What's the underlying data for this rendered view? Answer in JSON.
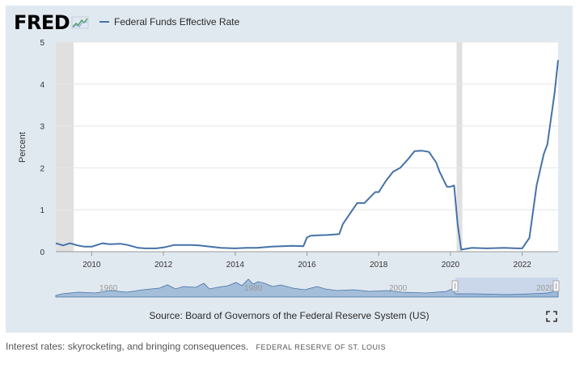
{
  "header": {
    "logo_text": "FRED",
    "legend_label": "Federal Funds Effective Rate",
    "series_color": "#4572a7"
  },
  "source": "Source: Board of Governors of the Federal Reserve System (US)",
  "caption": {
    "text": "Interest rates: skyrocketing, and bringing consequences.",
    "credit": "FEDERAL RESERVE OF ST. LOUIS"
  },
  "navigator": {
    "labels": [
      "1960",
      "1980",
      "2000",
      "2020"
    ],
    "fill_color": "#a8c0de",
    "selection_color": "#c6d4ea"
  },
  "chart_data": {
    "type": "line",
    "title": "",
    "xlabel": "",
    "ylabel": "Percent",
    "xlim": [
      2009.0,
      2023.0
    ],
    "ylim": [
      0,
      5
    ],
    "x_ticks": [
      2010,
      2012,
      2014,
      2016,
      2018,
      2020,
      2022
    ],
    "y_ticks": [
      0,
      1,
      2,
      3,
      4,
      5
    ],
    "grid": true,
    "legend_position": "top-left",
    "recessions": [
      [
        2009.0,
        2009.5
      ],
      [
        2020.17,
        2020.33
      ]
    ],
    "series": [
      {
        "name": "Federal Funds Effective Rate",
        "x": [
          2009.0,
          2009.2,
          2009.4,
          2009.6,
          2009.8,
          2010.0,
          2010.3,
          2010.5,
          2010.8,
          2011.0,
          2011.3,
          2011.5,
          2011.8,
          2012.0,
          2012.3,
          2012.5,
          2012.8,
          2013.0,
          2013.3,
          2013.6,
          2014.0,
          2014.3,
          2014.6,
          2015.0,
          2015.3,
          2015.6,
          2015.9,
          2016.0,
          2016.1,
          2016.3,
          2016.6,
          2016.9,
          2017.0,
          2017.2,
          2017.4,
          2017.6,
          2017.9,
          2018.0,
          2018.2,
          2018.4,
          2018.6,
          2018.8,
          2019.0,
          2019.2,
          2019.4,
          2019.6,
          2019.7,
          2019.9,
          2020.0,
          2020.1,
          2020.2,
          2020.3,
          2020.6,
          2021.0,
          2021.5,
          2021.9,
          2022.0,
          2022.2,
          2022.4,
          2022.6,
          2022.7,
          2022.9,
          2023.0
        ],
        "y": [
          0.2,
          0.15,
          0.2,
          0.15,
          0.12,
          0.12,
          0.2,
          0.18,
          0.19,
          0.16,
          0.09,
          0.08,
          0.08,
          0.1,
          0.16,
          0.16,
          0.16,
          0.15,
          0.12,
          0.09,
          0.08,
          0.09,
          0.09,
          0.12,
          0.13,
          0.14,
          0.13,
          0.34,
          0.38,
          0.39,
          0.4,
          0.42,
          0.66,
          0.91,
          1.16,
          1.16,
          1.42,
          1.42,
          1.69,
          1.91,
          2.0,
          2.19,
          2.4,
          2.41,
          2.38,
          2.13,
          1.9,
          1.55,
          1.55,
          1.58,
          0.65,
          0.05,
          0.09,
          0.08,
          0.09,
          0.08,
          0.08,
          0.33,
          1.58,
          2.33,
          2.56,
          3.78,
          4.57
        ]
      }
    ]
  }
}
